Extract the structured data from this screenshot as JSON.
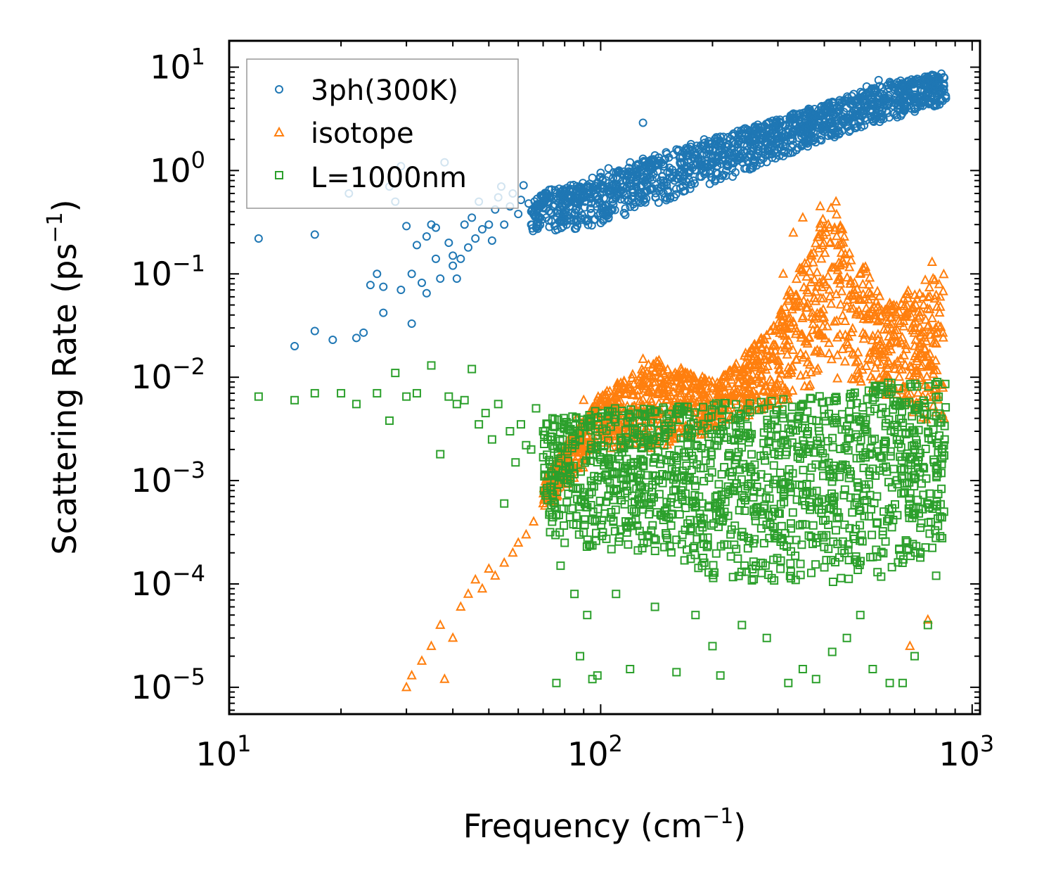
{
  "chart_data": {
    "type": "scatter",
    "title": "",
    "xlabel": "Frequency (cm",
    "xlabel_sup": "−1",
    "xlabel_end": ")",
    "ylabel": "Scattering Rate (ps",
    "ylabel_sup": "−1",
    "ylabel_end": ")",
    "xscale": "log",
    "yscale": "log",
    "xlim": [
      10,
      1050
    ],
    "ylim": [
      5.5e-06,
      18
    ],
    "x_ticks": [
      {
        "value": 10,
        "base": "10",
        "exp": "1"
      },
      {
        "value": 100,
        "base": "10",
        "exp": "2"
      },
      {
        "value": 1000,
        "base": "10",
        "exp": "3"
      }
    ],
    "y_ticks": [
      {
        "value": 1e-05,
        "base": "10",
        "exp": "−5"
      },
      {
        "value": 0.0001,
        "base": "10",
        "exp": "−4"
      },
      {
        "value": 0.001,
        "base": "10",
        "exp": "−3"
      },
      {
        "value": 0.01,
        "base": "10",
        "exp": "−2"
      },
      {
        "value": 0.1,
        "base": "10",
        "exp": "−1"
      },
      {
        "value": 1,
        "base": "10",
        "exp": "0"
      },
      {
        "value": 10,
        "base": "10",
        "exp": "1"
      }
    ],
    "legend": {
      "position": "top-left"
    },
    "series": [
      {
        "name": "3ph(300K)",
        "marker": "circle",
        "color": "#1f77b4",
        "points": [
          [
            12,
            0.22
          ],
          [
            15,
            0.02
          ],
          [
            17,
            0.028
          ],
          [
            17,
            0.24
          ],
          [
            19,
            0.023
          ],
          [
            21,
            0.6
          ],
          [
            22,
            0.024
          ],
          [
            23,
            0.027
          ],
          [
            24,
            0.078
          ],
          [
            25,
            0.1
          ],
          [
            26,
            0.042
          ],
          [
            26,
            0.075
          ],
          [
            27,
            0.7
          ],
          [
            28,
            0.5
          ],
          [
            29,
            1.1
          ],
          [
            29,
            0.07
          ],
          [
            30,
            0.29
          ],
          [
            31,
            0.033
          ],
          [
            31,
            0.1
          ],
          [
            32,
            0.19
          ],
          [
            33,
            0.082
          ],
          [
            34,
            0.065
          ],
          [
            34,
            0.23
          ],
          [
            35,
            0.3
          ],
          [
            36,
            0.28
          ],
          [
            36,
            0.14
          ],
          [
            37,
            0.09
          ],
          [
            38,
            1.2
          ],
          [
            39,
            0.2
          ],
          [
            40,
            0.12
          ],
          [
            40,
            0.15
          ],
          [
            41,
            0.09
          ],
          [
            42,
            0.14
          ],
          [
            43,
            0.3
          ],
          [
            44,
            0.18
          ],
          [
            45,
            0.35
          ],
          [
            46,
            0.22
          ],
          [
            47,
            0.5
          ],
          [
            48,
            0.27
          ],
          [
            50,
            0.3
          ],
          [
            51,
            0.21
          ],
          [
            52,
            0.42
          ],
          [
            53,
            0.55
          ],
          [
            54,
            0.7
          ],
          [
            55,
            0.3
          ],
          [
            57,
            0.45
          ],
          [
            58,
            0.6
          ],
          [
            60,
            0.38
          ],
          [
            61,
            0.52
          ],
          [
            62,
            0.72
          ],
          [
            64,
            0.48
          ],
          [
            65,
            0.3
          ],
          [
            67,
            0.42
          ],
          [
            70,
            0.58
          ],
          [
            72,
            0.5
          ],
          [
            75,
            0.45
          ],
          [
            78,
            0.62
          ],
          [
            80,
            0.38
          ],
          [
            83,
            0.72
          ],
          [
            86,
            0.55
          ],
          [
            90,
            0.6
          ],
          [
            95,
            0.85
          ],
          [
            100,
            0.95
          ],
          [
            105,
            1.05
          ],
          [
            112,
            1.0
          ],
          [
            120,
            1.2
          ],
          [
            130,
            2.9
          ],
          [
            130,
            1.3
          ],
          [
            140,
            1.4
          ],
          [
            150,
            1.5
          ],
          [
            160,
            1.6
          ],
          [
            175,
            1.8
          ],
          [
            190,
            2.0
          ],
          [
            205,
            1.9
          ],
          [
            220,
            2.1
          ],
          [
            240,
            2.3
          ],
          [
            260,
            2.6
          ],
          [
            280,
            2.4
          ],
          [
            300,
            2.8
          ],
          [
            330,
            3.2
          ],
          [
            360,
            3.6
          ],
          [
            400,
            4.2
          ],
          [
            440,
            4.8
          ],
          [
            480,
            5.5
          ],
          [
            520,
            6.5
          ],
          [
            560,
            7.5
          ],
          [
            600,
            7.2
          ],
          [
            650,
            6.8
          ],
          [
            700,
            7.5
          ],
          [
            750,
            7.8
          ],
          [
            800,
            6.5
          ],
          [
            850,
            5.0
          ]
        ],
        "band": {
          "x_range": [
            65,
            850
          ],
          "low": [
            0.25,
            0.28,
            0.45,
            0.7,
            1.2,
            2.0,
            3.0,
            4.5
          ],
          "high": [
            0.6,
            0.8,
            1.3,
            2.0,
            3.0,
            4.5,
            7.0,
            9.0
          ]
        }
      },
      {
        "name": "isotope",
        "marker": "triangle",
        "color": "#ff7f0e",
        "points": [
          [
            30,
            1e-05
          ],
          [
            31,
            1.3e-05
          ],
          [
            33,
            1.8e-05
          ],
          [
            35,
            2.5e-05
          ],
          [
            37,
            4e-05
          ],
          [
            38,
            1.2e-05
          ],
          [
            40,
            3e-05
          ],
          [
            42,
            6e-05
          ],
          [
            44,
            8e-05
          ],
          [
            46,
            0.00011
          ],
          [
            48,
            9e-05
          ],
          [
            50,
            0.00014
          ],
          [
            52,
            0.00012
          ],
          [
            55,
            0.00016
          ],
          [
            58,
            0.0002
          ],
          [
            60,
            0.00025
          ],
          [
            63,
            0.0003
          ],
          [
            66,
            0.0004
          ],
          [
            70,
            0.0006
          ],
          [
            74,
            0.0009
          ],
          [
            78,
            0.0014
          ],
          [
            82,
            0.0025
          ],
          [
            86,
            0.004
          ],
          [
            90,
            0.006
          ],
          [
            95,
            0.005
          ],
          [
            100,
            0.004
          ],
          [
            110,
            0.005
          ],
          [
            120,
            0.008
          ],
          [
            130,
            0.015
          ],
          [
            140,
            0.009
          ],
          [
            150,
            0.006
          ],
          [
            170,
            0.006
          ],
          [
            190,
            0.007
          ],
          [
            210,
            0.008
          ],
          [
            230,
            0.007
          ],
          [
            250,
            0.008
          ],
          [
            270,
            0.012
          ],
          [
            290,
            0.02
          ],
          [
            310,
            0.1
          ],
          [
            330,
            0.25
          ],
          [
            350,
            0.35
          ],
          [
            370,
            0.15
          ],
          [
            390,
            0.45
          ],
          [
            410,
            0.3
          ],
          [
            430,
            0.5
          ],
          [
            450,
            0.2
          ],
          [
            470,
            0.08
          ],
          [
            500,
            0.04
          ],
          [
            540,
            0.025
          ],
          [
            580,
            0.018
          ],
          [
            620,
            0.012
          ],
          [
            660,
            0.008
          ],
          [
            700,
            0.02
          ],
          [
            740,
            0.05
          ],
          [
            780,
            0.13
          ],
          [
            820,
            0.06
          ],
          [
            840,
            0.004
          ],
          [
            760,
            4.5e-05
          ],
          [
            680,
            2.5e-05
          ]
        ],
        "band": {
          "x_range": [
            70,
            840
          ],
          "low": [
            0.0005,
            0.002,
            0.002,
            0.003,
            0.005,
            0.01,
            0.006,
            0.003
          ],
          "high": [
            0.001,
            0.007,
            0.015,
            0.009,
            0.03,
            0.5,
            0.05,
            0.12
          ]
        }
      },
      {
        "name": "L=1000nm",
        "marker": "square",
        "color": "#2ca02c",
        "points": [
          [
            12,
            0.0065
          ],
          [
            15,
            0.006
          ],
          [
            17,
            0.007
          ],
          [
            20,
            0.007
          ],
          [
            22,
            0.0055
          ],
          [
            25,
            0.007
          ],
          [
            27,
            0.0038
          ],
          [
            28,
            0.011
          ],
          [
            30,
            0.0065
          ],
          [
            32,
            0.007
          ],
          [
            35,
            0.013
          ],
          [
            37,
            0.0018
          ],
          [
            39,
            0.0065
          ],
          [
            41,
            0.0055
          ],
          [
            43,
            0.006
          ],
          [
            45,
            0.012
          ],
          [
            47,
            0.0035
          ],
          [
            49,
            0.0045
          ],
          [
            51,
            0.0025
          ],
          [
            53,
            0.0055
          ],
          [
            55,
            0.0006
          ],
          [
            57,
            0.003
          ],
          [
            59,
            0.0015
          ],
          [
            61,
            0.0035
          ],
          [
            63,
            0.0022
          ],
          [
            65,
            0.002
          ],
          [
            67,
            0.005
          ],
          [
            70,
            0.003
          ],
          [
            72,
            0.0025
          ],
          [
            74,
            0.0004
          ],
          [
            76,
            1.1e-05
          ],
          [
            78,
            0.00015
          ],
          [
            80,
            0.00025
          ],
          [
            85,
            8e-05
          ],
          [
            88,
            2e-05
          ],
          [
            92,
            5e-05
          ],
          [
            95,
            1.2e-05
          ],
          [
            98,
            1.3e-05
          ],
          [
            110,
            8e-05
          ],
          [
            120,
            1.5e-05
          ],
          [
            140,
            6e-05
          ],
          [
            160,
            1.4e-05
          ],
          [
            180,
            5e-05
          ],
          [
            200,
            2.5e-05
          ],
          [
            210,
            1.3e-05
          ],
          [
            240,
            4e-05
          ],
          [
            280,
            3e-05
          ],
          [
            320,
            1.1e-05
          ],
          [
            350,
            1.5e-05
          ],
          [
            380,
            1.2e-05
          ],
          [
            420,
            2.2e-05
          ],
          [
            460,
            3e-05
          ],
          [
            500,
            5e-05
          ],
          [
            540,
            1.5e-05
          ],
          [
            600,
            1.1e-05
          ],
          [
            650,
            1.1e-05
          ],
          [
            700,
            2e-05
          ],
          [
            760,
            4e-05
          ],
          [
            800,
            0.00012
          ],
          [
            840,
            0.0005
          ]
        ],
        "band": {
          "x_range": [
            70,
            850
          ],
          "low": [
            0.0003,
            0.0002,
            0.0002,
            0.0001,
            0.0001,
            0.0001,
            0.00012,
            0.0002
          ],
          "high": [
            0.004,
            0.005,
            0.005,
            0.006,
            0.006,
            0.007,
            0.009,
            0.009
          ]
        }
      }
    ]
  }
}
